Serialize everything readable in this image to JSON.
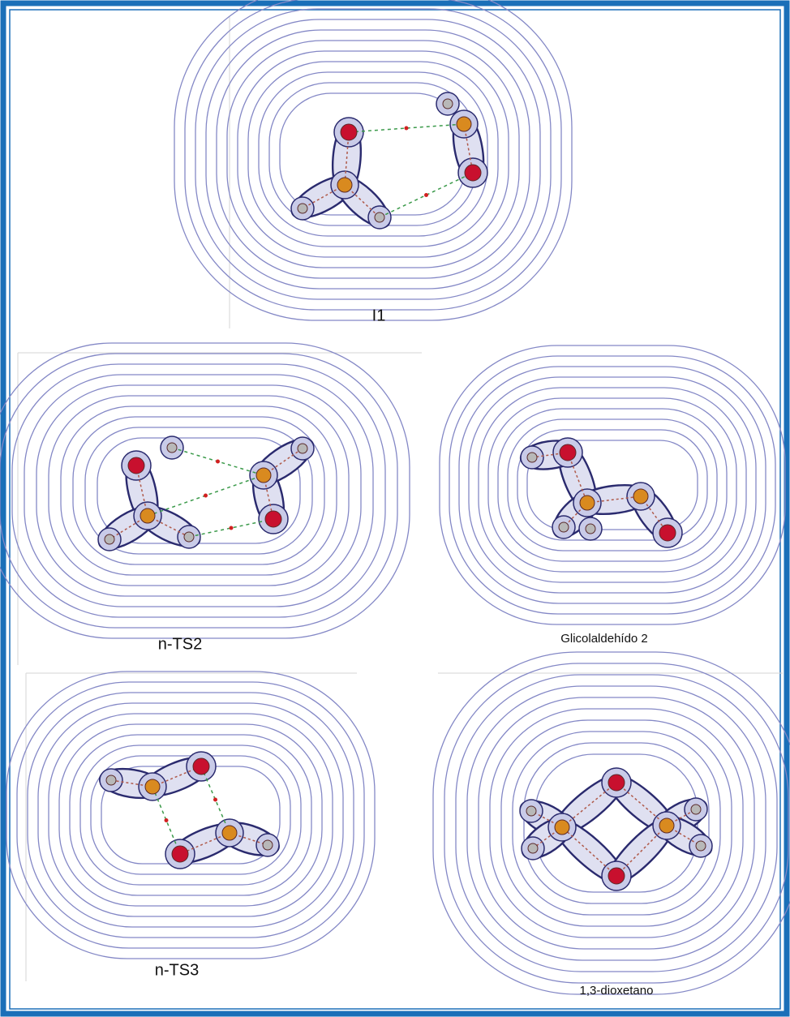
{
  "panels": [
    {
      "label": "I1"
    },
    {
      "label": "n-TS2"
    },
    {
      "label": "Glicolaldehído 2"
    },
    {
      "label": "n-TS3"
    },
    {
      "label": "1,3-dioxetano"
    }
  ]
}
